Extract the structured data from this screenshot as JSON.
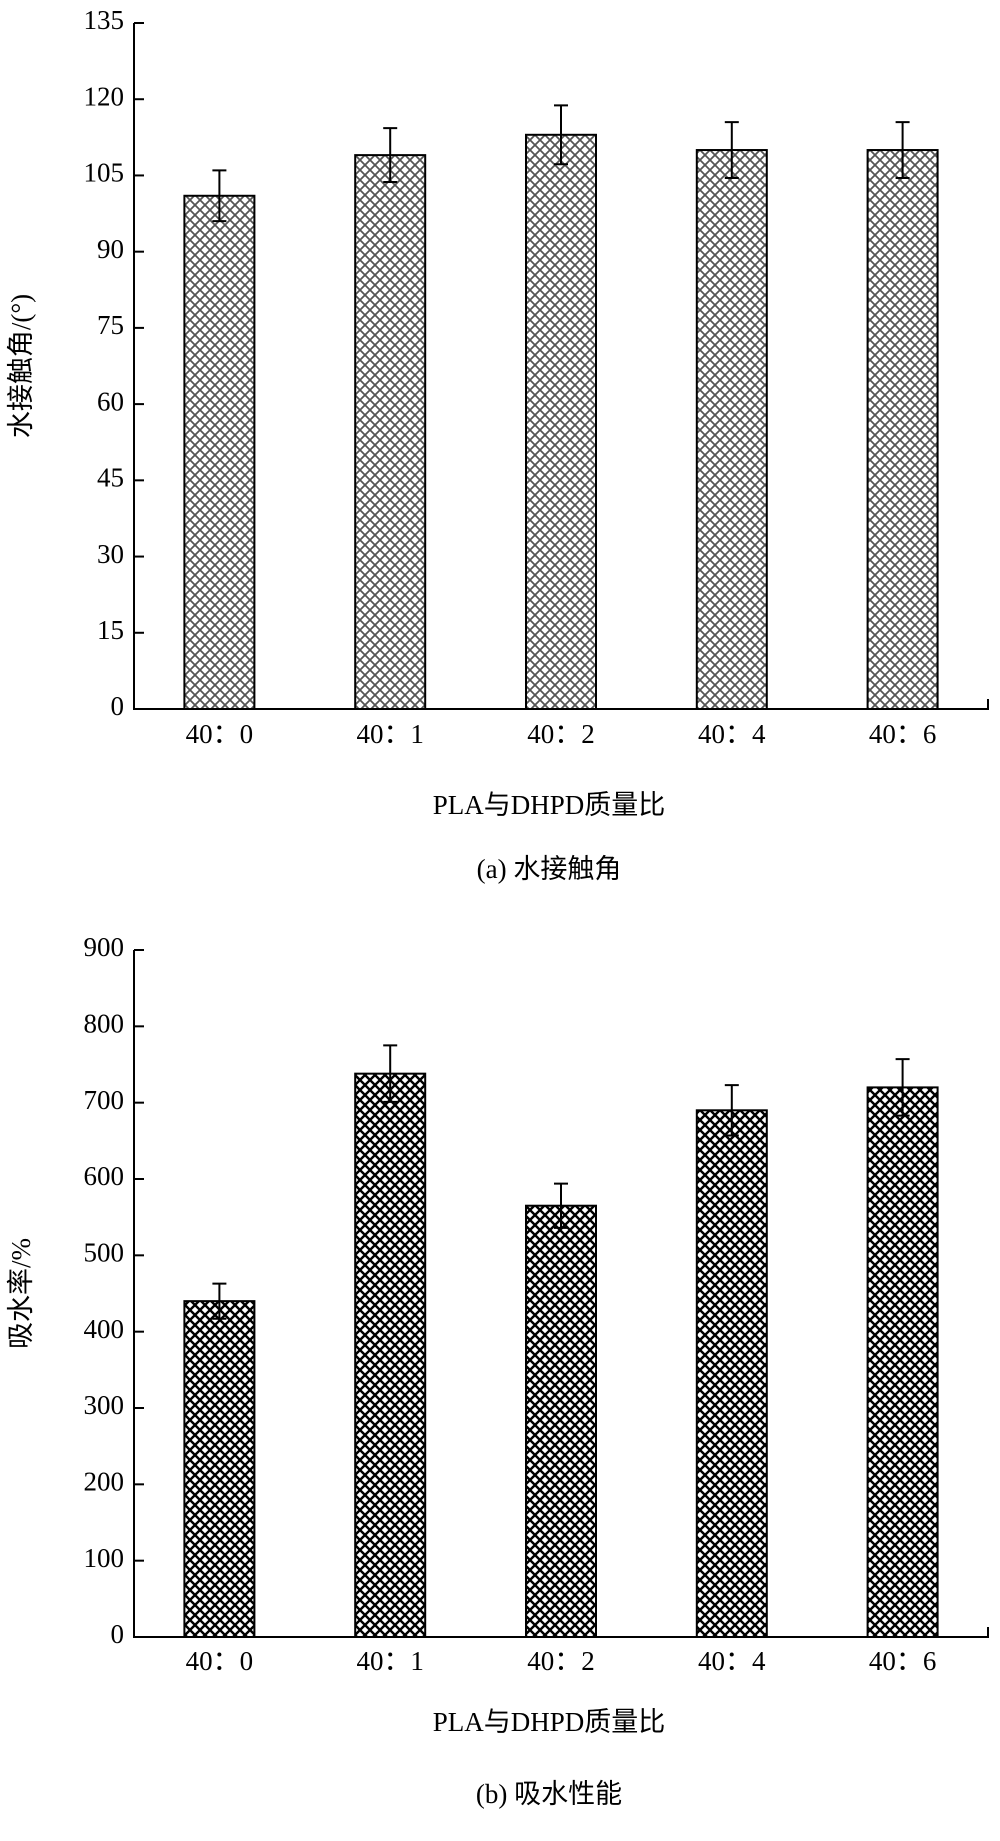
{
  "chart_data": [
    {
      "type": "bar",
      "ylabel": "水接触角/(°)",
      "xlabel": "PLA与DHPD质量比",
      "caption": "(a) 水接触角",
      "categories": [
        "40：0",
        "40：1",
        "40：2",
        "40：4",
        "40：6"
      ],
      "values": [
        101,
        109,
        113,
        110,
        110
      ],
      "errors": [
        5,
        5.3,
        5.8,
        5.5,
        5.5
      ],
      "color": "#555555",
      "ylim": [
        0,
        135
      ],
      "yticks": [
        0,
        15,
        30,
        45,
        60,
        75,
        90,
        105,
        120,
        135
      ]
    },
    {
      "type": "bar",
      "ylabel": "吸水率/%",
      "xlabel": "PLA与DHPD质量比",
      "caption": "(b) 吸水性能",
      "categories": [
        "40：0",
        "40：1",
        "40：2",
        "40：4",
        "40：6"
      ],
      "values": [
        440,
        738,
        565,
        690,
        720
      ],
      "errors": [
        23,
        37,
        29,
        33,
        37
      ],
      "color": "#000000",
      "ylim": [
        0,
        900
      ],
      "yticks": [
        0,
        100,
        200,
        300,
        400,
        500,
        600,
        700,
        800,
        900
      ]
    }
  ]
}
